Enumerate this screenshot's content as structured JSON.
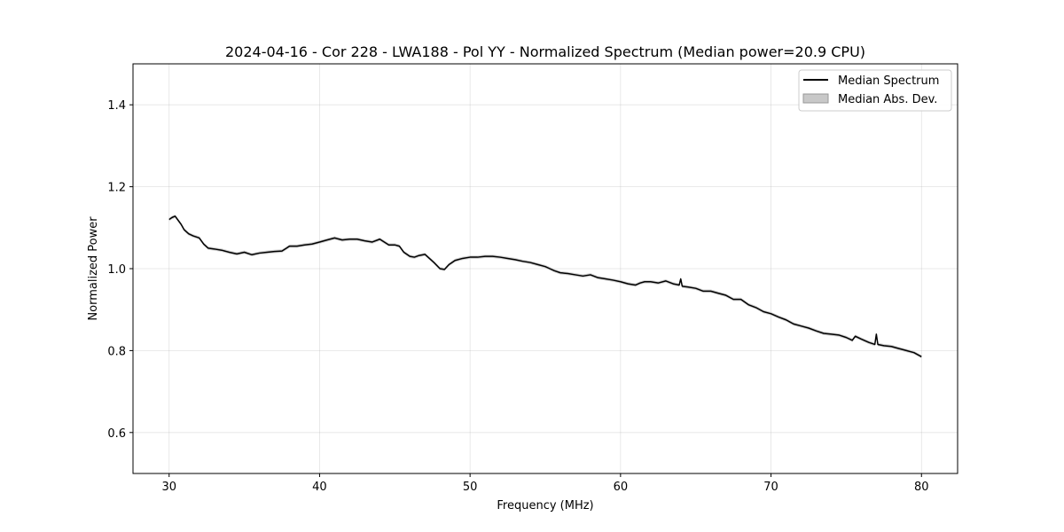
{
  "chart_data": {
    "type": "line",
    "title": "2024-04-16 - Cor 228 - LWA188 - Pol YY - Normalized Spectrum (Median power=20.9 CPU)",
    "xlabel": "Frequency (MHz)",
    "ylabel": "Normalized Power",
    "xlim": [
      27.6,
      82.4
    ],
    "ylim": [
      0.5,
      1.5
    ],
    "xticks": [
      30,
      40,
      50,
      60,
      70,
      80
    ],
    "xtick_labels": [
      "30",
      "40",
      "50",
      "60",
      "70",
      "80"
    ],
    "yticks": [
      0.6,
      0.8,
      1.0,
      1.2,
      1.4
    ],
    "ytick_labels": [
      "0.6",
      "0.8",
      "1.0",
      "1.2",
      "1.4"
    ],
    "grid": true,
    "legend": {
      "location": "top-right",
      "entries": [
        {
          "label": "Median Spectrum",
          "style": "line",
          "color": "#000000"
        },
        {
          "label": "Median Abs. Dev.",
          "style": "band",
          "color": "#c8c8c8"
        }
      ]
    },
    "series": [
      {
        "name": "Median Spectrum",
        "color": "#000000",
        "x": [
          30.0,
          30.2,
          30.4,
          30.6,
          30.8,
          31.0,
          31.3,
          31.6,
          32.0,
          32.3,
          32.6,
          33.0,
          33.5,
          34.0,
          34.5,
          35.0,
          35.5,
          36.0,
          36.5,
          37.0,
          37.5,
          37.8,
          38.0,
          38.5,
          39.0,
          39.5,
          40.0,
          40.5,
          41.0,
          41.5,
          42.0,
          42.5,
          43.0,
          43.5,
          44.0,
          44.3,
          44.6,
          45.0,
          45.3,
          45.6,
          46.0,
          46.3,
          46.6,
          47.0,
          47.3,
          47.6,
          48.0,
          48.3,
          48.6,
          49.0,
          49.5,
          50.0,
          50.5,
          51.0,
          51.5,
          52.0,
          52.5,
          53.0,
          53.5,
          54.0,
          54.5,
          55.0,
          55.3,
          55.6,
          56.0,
          56.5,
          57.0,
          57.5,
          58.0,
          58.5,
          59.0,
          59.5,
          60.0,
          60.5,
          61.0,
          61.3,
          61.6,
          62.0,
          62.5,
          63.0,
          63.5,
          63.9,
          64.0,
          64.1,
          64.5,
          65.0,
          65.5,
          66.0,
          66.5,
          67.0,
          67.5,
          68.0,
          68.5,
          69.0,
          69.5,
          70.0,
          70.5,
          71.0,
          71.5,
          72.0,
          72.5,
          73.0,
          73.5,
          74.0,
          74.5,
          75.0,
          75.4,
          75.6,
          76.0,
          76.5,
          76.9,
          77.0,
          77.1,
          77.5,
          78.0,
          78.5,
          79.0,
          79.5,
          80.0
        ],
        "values": [
          1.12,
          1.125,
          1.128,
          1.118,
          1.108,
          1.095,
          1.085,
          1.08,
          1.075,
          1.06,
          1.05,
          1.048,
          1.045,
          1.04,
          1.036,
          1.04,
          1.034,
          1.038,
          1.04,
          1.042,
          1.043,
          1.05,
          1.055,
          1.055,
          1.058,
          1.06,
          1.065,
          1.07,
          1.075,
          1.07,
          1.072,
          1.072,
          1.068,
          1.065,
          1.072,
          1.065,
          1.058,
          1.058,
          1.055,
          1.04,
          1.03,
          1.028,
          1.032,
          1.035,
          1.025,
          1.015,
          1.0,
          0.998,
          1.01,
          1.02,
          1.025,
          1.028,
          1.028,
          1.03,
          1.03,
          1.028,
          1.025,
          1.022,
          1.018,
          1.015,
          1.01,
          1.005,
          1.0,
          0.995,
          0.99,
          0.988,
          0.985,
          0.982,
          0.985,
          0.978,
          0.975,
          0.972,
          0.968,
          0.963,
          0.96,
          0.965,
          0.968,
          0.968,
          0.965,
          0.97,
          0.963,
          0.96,
          0.975,
          0.957,
          0.955,
          0.952,
          0.945,
          0.945,
          0.94,
          0.935,
          0.925,
          0.925,
          0.912,
          0.905,
          0.895,
          0.89,
          0.882,
          0.875,
          0.865,
          0.86,
          0.855,
          0.848,
          0.842,
          0.84,
          0.838,
          0.832,
          0.825,
          0.835,
          0.828,
          0.82,
          0.815,
          0.84,
          0.815,
          0.812,
          0.81,
          0.805,
          0.8,
          0.795,
          0.785
        ]
      }
    ]
  }
}
